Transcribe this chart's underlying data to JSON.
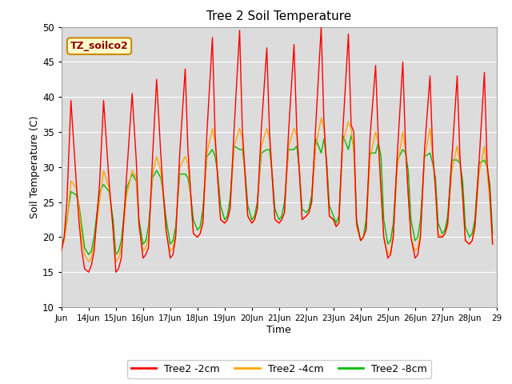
{
  "title": "Tree 2 Soil Temperature",
  "xlabel": "Time",
  "ylabel": "Soil Temperature (C)",
  "ylim": [
    10,
    50
  ],
  "xlim_days": [
    13.0,
    29.0
  ],
  "bg_color": "#dcdcdc",
  "annotation_text": "TZ_soilco2",
  "annotation_bg": "#ffffcc",
  "annotation_border": "#cc8800",
  "annotation_text_color": "#8b0000",
  "grid_color": "#ffffff",
  "colors": {
    "2cm": "#ff0000",
    "4cm": "#ffa500",
    "8cm": "#00bb00"
  },
  "legend_labels": [
    "Tree2 -2cm",
    "Tree2 -4cm",
    "Tree2 -8cm"
  ],
  "tick_labels": [
    "Jun",
    "14Jun",
    "15Jun",
    "16Jun",
    "17Jun",
    "18Jun",
    "19Jun",
    "20Jun",
    "21Jun",
    "22Jun",
    "23Jun",
    "24Jun",
    "25Jun",
    "26Jun",
    "27Jun",
    "28Jun",
    "29"
  ],
  "tick_positions": [
    13,
    14,
    15,
    16,
    17,
    18,
    19,
    20,
    21,
    22,
    23,
    24,
    25,
    26,
    27,
    28,
    29
  ],
  "data_2cm_x": [
    13.0,
    13.1,
    13.2,
    13.35,
    13.55,
    13.65,
    13.75,
    13.85,
    14.0,
    14.1,
    14.2,
    14.4,
    14.55,
    14.75,
    14.9,
    15.0,
    15.1,
    15.2,
    15.4,
    15.6,
    15.75,
    15.85,
    16.0,
    16.1,
    16.2,
    16.35,
    16.5,
    16.65,
    16.75,
    16.85,
    17.0,
    17.1,
    17.2,
    17.35,
    17.55,
    17.65,
    17.75,
    17.85,
    18.0,
    18.1,
    18.2,
    18.35,
    18.55,
    18.65,
    18.75,
    18.85,
    19.0,
    19.1,
    19.2,
    19.35,
    19.55,
    19.65,
    19.75,
    19.85,
    20.0,
    20.1,
    20.2,
    20.35,
    20.55,
    20.65,
    20.75,
    20.85,
    21.0,
    21.1,
    21.2,
    21.35,
    21.55,
    21.65,
    21.75,
    21.85,
    22.0,
    22.1,
    22.2,
    22.35,
    22.55,
    22.65,
    22.75,
    22.85,
    23.0,
    23.1,
    23.2,
    23.35,
    23.55,
    23.65,
    23.75,
    23.85,
    24.0,
    24.1,
    24.2,
    24.35,
    24.55,
    24.65,
    24.75,
    24.85,
    25.0,
    25.1,
    25.2,
    25.35,
    25.55,
    25.65,
    25.75,
    25.85,
    26.0,
    26.1,
    26.2,
    26.35,
    26.55,
    26.65,
    26.75,
    26.85,
    27.0,
    27.1,
    27.2,
    27.35,
    27.55,
    27.65,
    27.75,
    27.85,
    28.0,
    28.1,
    28.2,
    28.35,
    28.55,
    28.65,
    28.75,
    28.85
  ],
  "data_2cm_y": [
    18.0,
    20.0,
    25.0,
    39.5,
    27.5,
    22.0,
    18.0,
    15.5,
    15.0,
    16.0,
    18.0,
    27.5,
    39.5,
    28.0,
    21.0,
    15.0,
    15.5,
    17.0,
    29.0,
    40.5,
    31.0,
    22.0,
    17.0,
    17.5,
    18.5,
    31.5,
    42.5,
    32.0,
    26.0,
    21.0,
    17.0,
    17.5,
    20.0,
    32.0,
    44.0,
    32.5,
    26.5,
    20.5,
    20.0,
    20.5,
    22.0,
    35.0,
    48.5,
    34.5,
    28.0,
    22.5,
    22.0,
    22.5,
    24.0,
    35.5,
    49.5,
    35.5,
    29.0,
    23.0,
    22.0,
    22.5,
    24.0,
    35.5,
    47.0,
    35.0,
    28.5,
    22.5,
    22.0,
    22.5,
    23.5,
    35.0,
    47.5,
    35.5,
    29.0,
    22.5,
    23.0,
    23.5,
    25.0,
    36.0,
    50.0,
    36.5,
    30.0,
    23.0,
    22.5,
    21.5,
    22.0,
    35.5,
    49.0,
    36.0,
    35.0,
    22.0,
    19.5,
    20.0,
    21.0,
    34.5,
    44.5,
    34.0,
    26.5,
    20.0,
    17.0,
    17.5,
    20.0,
    32.0,
    45.0,
    33.0,
    26.0,
    20.0,
    17.0,
    17.5,
    20.0,
    32.5,
    43.0,
    32.0,
    27.0,
    20.0,
    20.0,
    20.5,
    22.0,
    31.0,
    43.0,
    31.5,
    26.0,
    19.5,
    19.0,
    19.5,
    21.5,
    30.5,
    43.5,
    30.5,
    26.5,
    19.0
  ],
  "data_4cm_x": [
    13.0,
    13.1,
    13.2,
    13.35,
    13.55,
    13.65,
    13.75,
    13.85,
    14.0,
    14.1,
    14.2,
    14.4,
    14.55,
    14.75,
    14.9,
    15.0,
    15.1,
    15.2,
    15.4,
    15.6,
    15.75,
    15.85,
    16.0,
    16.1,
    16.2,
    16.35,
    16.5,
    16.65,
    16.75,
    16.85,
    17.0,
    17.1,
    17.2,
    17.35,
    17.55,
    17.65,
    17.75,
    17.85,
    18.0,
    18.1,
    18.2,
    18.35,
    18.55,
    18.65,
    18.75,
    18.85,
    19.0,
    19.1,
    19.2,
    19.35,
    19.55,
    19.65,
    19.75,
    19.85,
    20.0,
    20.1,
    20.2,
    20.35,
    20.55,
    20.65,
    20.75,
    20.85,
    21.0,
    21.1,
    21.2,
    21.35,
    21.55,
    21.65,
    21.75,
    21.85,
    22.0,
    22.1,
    22.2,
    22.35,
    22.55,
    22.65,
    22.75,
    22.85,
    23.0,
    23.1,
    23.2,
    23.35,
    23.55,
    23.65,
    23.75,
    23.85,
    24.0,
    24.1,
    24.2,
    24.35,
    24.55,
    24.65,
    24.75,
    24.85,
    25.0,
    25.1,
    25.2,
    25.35,
    25.55,
    25.65,
    25.75,
    25.85,
    26.0,
    26.1,
    26.2,
    26.35,
    26.55,
    26.65,
    26.75,
    26.85,
    27.0,
    27.1,
    27.2,
    27.35,
    27.55,
    27.65,
    27.75,
    27.85,
    28.0,
    28.1,
    28.2,
    28.35,
    28.55,
    28.65,
    28.75,
    28.85
  ],
  "data_4cm_y": [
    18.5,
    19.5,
    22.0,
    28.0,
    27.0,
    24.0,
    20.0,
    17.5,
    16.5,
    17.0,
    19.0,
    25.0,
    29.5,
    27.0,
    21.0,
    16.5,
    17.0,
    18.5,
    26.0,
    29.5,
    28.5,
    21.5,
    18.0,
    18.5,
    20.0,
    29.0,
    31.5,
    29.5,
    25.5,
    20.5,
    18.0,
    18.5,
    20.5,
    30.0,
    31.5,
    30.5,
    25.5,
    20.5,
    20.0,
    20.5,
    22.5,
    32.0,
    35.5,
    33.5,
    28.5,
    22.5,
    22.0,
    22.5,
    24.0,
    33.0,
    35.5,
    34.0,
    28.5,
    23.0,
    22.0,
    22.5,
    24.0,
    33.0,
    35.5,
    34.0,
    28.5,
    22.5,
    22.0,
    22.5,
    23.5,
    33.0,
    35.5,
    34.5,
    29.5,
    22.5,
    23.0,
    23.5,
    25.0,
    33.0,
    37.0,
    35.5,
    30.0,
    23.0,
    22.5,
    21.5,
    22.0,
    33.5,
    36.5,
    35.5,
    32.0,
    21.5,
    19.5,
    20.0,
    21.0,
    31.5,
    35.0,
    33.5,
    27.0,
    20.0,
    17.5,
    18.0,
    20.5,
    30.0,
    35.0,
    32.5,
    26.5,
    20.0,
    18.0,
    18.5,
    20.5,
    31.5,
    35.5,
    31.5,
    27.0,
    20.5,
    20.0,
    20.5,
    21.5,
    29.5,
    33.0,
    30.5,
    25.5,
    19.5,
    19.0,
    19.5,
    21.0,
    29.0,
    33.0,
    29.5,
    25.0,
    19.0
  ],
  "data_8cm_x": [
    13.0,
    13.1,
    13.2,
    13.35,
    13.55,
    13.65,
    13.75,
    13.85,
    14.0,
    14.1,
    14.2,
    14.4,
    14.55,
    14.75,
    14.9,
    15.0,
    15.1,
    15.2,
    15.4,
    15.6,
    15.75,
    15.85,
    16.0,
    16.1,
    16.2,
    16.35,
    16.5,
    16.65,
    16.75,
    16.85,
    17.0,
    17.1,
    17.2,
    17.35,
    17.55,
    17.65,
    17.75,
    17.85,
    18.0,
    18.1,
    18.2,
    18.35,
    18.55,
    18.65,
    18.75,
    18.85,
    19.0,
    19.1,
    19.2,
    19.35,
    19.55,
    19.65,
    19.75,
    19.85,
    20.0,
    20.1,
    20.2,
    20.35,
    20.55,
    20.65,
    20.75,
    20.85,
    21.0,
    21.1,
    21.2,
    21.35,
    21.55,
    21.65,
    21.75,
    21.85,
    22.0,
    22.1,
    22.2,
    22.35,
    22.55,
    22.65,
    22.75,
    22.85,
    23.0,
    23.1,
    23.2,
    23.35,
    23.55,
    23.65,
    23.75,
    23.85,
    24.0,
    24.1,
    24.2,
    24.35,
    24.55,
    24.65,
    24.75,
    24.85,
    25.0,
    25.1,
    25.2,
    25.35,
    25.55,
    25.65,
    25.75,
    25.85,
    26.0,
    26.1,
    26.2,
    26.35,
    26.55,
    26.65,
    26.75,
    26.85,
    27.0,
    27.1,
    27.2,
    27.35,
    27.55,
    27.65,
    27.75,
    27.85,
    28.0,
    28.1,
    28.2,
    28.35,
    28.55,
    28.65,
    28.75,
    28.85
  ],
  "data_8cm_y": [
    19.0,
    20.0,
    22.5,
    26.5,
    26.0,
    24.5,
    21.5,
    18.5,
    17.5,
    18.0,
    20.0,
    26.5,
    27.5,
    26.5,
    22.5,
    17.5,
    18.0,
    19.5,
    27.0,
    29.0,
    28.0,
    22.5,
    19.0,
    19.5,
    21.5,
    28.5,
    29.5,
    28.5,
    26.0,
    22.5,
    19.0,
    19.5,
    21.5,
    29.0,
    29.0,
    28.5,
    26.0,
    22.5,
    21.0,
    21.5,
    24.0,
    31.5,
    32.5,
    31.5,
    29.0,
    24.5,
    22.5,
    23.0,
    25.5,
    33.0,
    32.5,
    32.5,
    29.5,
    24.5,
    22.5,
    23.0,
    25.0,
    32.0,
    32.5,
    32.5,
    29.0,
    24.0,
    22.5,
    23.0,
    25.0,
    32.5,
    32.5,
    33.0,
    29.5,
    24.0,
    23.5,
    24.0,
    26.0,
    34.0,
    32.0,
    34.0,
    31.0,
    24.5,
    23.0,
    22.0,
    23.0,
    34.5,
    32.5,
    34.5,
    33.0,
    22.5,
    19.5,
    20.0,
    22.5,
    32.0,
    32.0,
    33.5,
    31.5,
    22.5,
    19.0,
    19.5,
    22.0,
    31.0,
    32.5,
    32.0,
    29.5,
    22.5,
    19.5,
    20.0,
    22.5,
    31.5,
    32.0,
    30.5,
    28.5,
    22.0,
    20.5,
    21.0,
    23.0,
    31.0,
    31.0,
    30.5,
    28.0,
    21.5,
    20.0,
    20.5,
    22.5,
    30.5,
    31.0,
    30.0,
    27.5,
    20.5
  ]
}
